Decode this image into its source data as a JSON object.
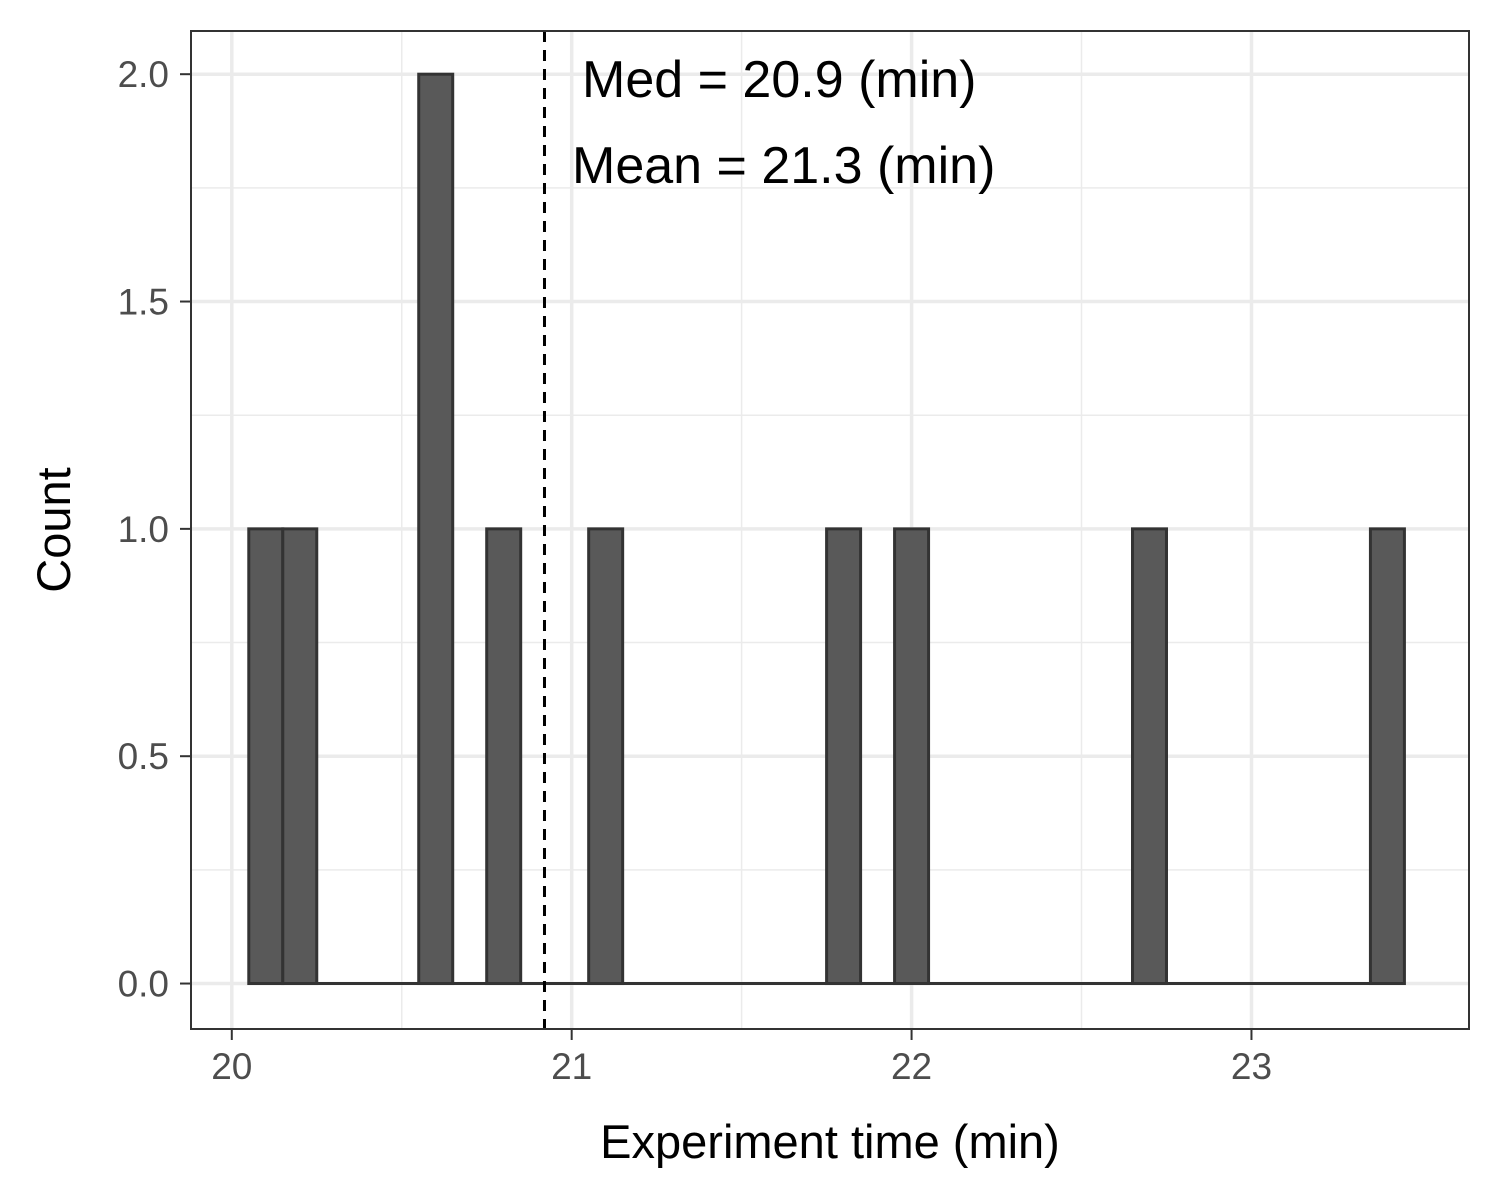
{
  "chart_data": {
    "type": "bar",
    "subtype": "histogram",
    "title": "",
    "xlabel": "Experiment time (min)",
    "ylabel": "Count",
    "xlim": [
      19.88,
      23.64
    ],
    "ylim": [
      -0.1,
      2.095
    ],
    "x_ticks": [
      20,
      21,
      22,
      23
    ],
    "y_ticks": [
      0.0,
      0.5,
      1.0,
      1.5,
      2.0
    ],
    "x_tick_labels": [
      "20",
      "21",
      "22",
      "23"
    ],
    "y_tick_labels": [
      "0.0",
      "0.5",
      "1.0",
      "1.5",
      "2.0"
    ],
    "grid": true,
    "bin_width": 0.1,
    "bins": [
      {
        "x": 20.1,
        "count": 1
      },
      {
        "x": 20.2,
        "count": 1
      },
      {
        "x": 20.6,
        "count": 2
      },
      {
        "x": 20.8,
        "count": 1
      },
      {
        "x": 21.1,
        "count": 1
      },
      {
        "x": 21.8,
        "count": 1
      },
      {
        "x": 22.0,
        "count": 1
      },
      {
        "x": 22.7,
        "count": 1
      },
      {
        "x": 23.4,
        "count": 1
      }
    ],
    "vline": {
      "x": 20.92,
      "style": "dashed"
    },
    "annotations": [
      {
        "text": "Med =  20.9 (min)"
      },
      {
        "text": "Mean =  21.3 (min)"
      }
    ],
    "colors": {
      "bar_fill": "#595959",
      "bar_stroke": "#333333",
      "grid": "#ebebeb",
      "panel_border": "#333333",
      "vline": "#000000"
    }
  }
}
